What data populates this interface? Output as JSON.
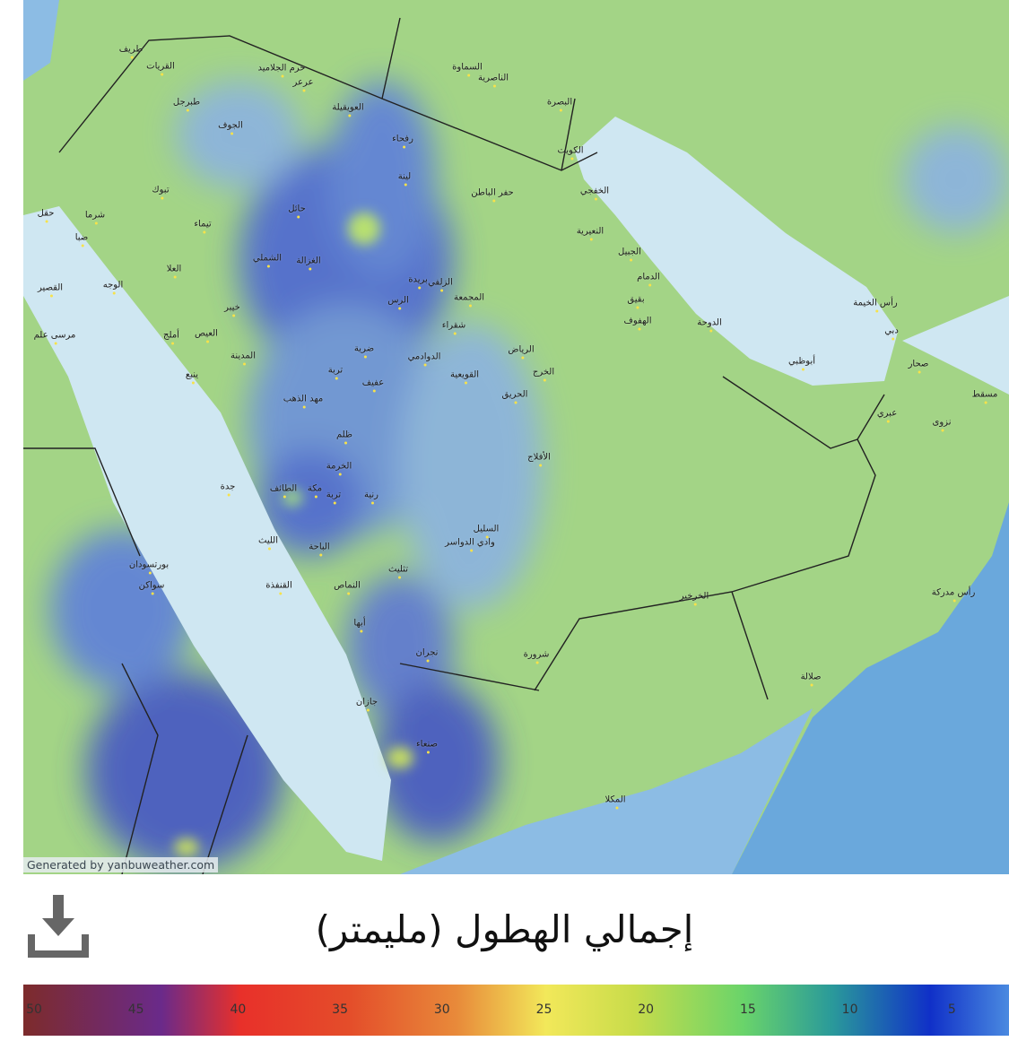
{
  "map": {
    "credit": "Generated by yanbuweather.com",
    "colors": {
      "land": "#a3d486",
      "sea_shallow": "#cfe7f2",
      "sea_deep": "#6aa8dc",
      "rain_light": "#7aa6e0",
      "rain_heavy": "#3a4fd0",
      "border": "#222222"
    },
    "cities": [
      "الرياض",
      "الخرج",
      "الحريق",
      "الأفلاج",
      "بريدة",
      "الرس",
      "المجمعة",
      "الزلفي",
      "شقراء",
      "الدوادمي",
      "القويعية",
      "عفيف",
      "ضرية",
      "ظلم",
      "رنية",
      "تربة",
      "الخرمة",
      "الطائف",
      "مكة",
      "جدة",
      "الليث",
      "القنفذة",
      "النماص",
      "الباحة",
      "أبها",
      "نجران",
      "جازان",
      "شرورة",
      "السليل",
      "وادي الدواسر",
      "تثليث",
      "الخرخير",
      "صلالة",
      "المكلا",
      "صنعاء",
      "الدمام",
      "الهفوف",
      "بقيق",
      "الجبيل",
      "النعيرية",
      "الخفجي",
      "الكويت",
      "البصرة",
      "الناصرية",
      "السماوة",
      "حفر الباطن",
      "رفحاء",
      "عرعر",
      "طريف",
      "القريات",
      "طبرجل",
      "الجوف",
      "حرم الجلاميد",
      "العويقيلة",
      "لينة",
      "حائل",
      "الغزالة",
      "الشملي",
      "تيماء",
      "تبوك",
      "شرما",
      "ضبا",
      "العلا",
      "الوجه",
      "خيبر",
      "العيص",
      "أملج",
      "ينبع",
      "المدينة",
      "مهد الذهب",
      "تربة",
      "الدوحة",
      "أبوظبي",
      "دبي",
      "رأس الخيمة",
      "صحار",
      "مسقط",
      "عبري",
      "نزوى",
      "رأس مدركة",
      "بورتسودان",
      "سواكن",
      "مرسى علم",
      "القصير",
      "حقل"
    ]
  },
  "download_icon": "download-icon",
  "legend": {
    "title": "إجمالي الهطول (مليمتر)",
    "ticks": [
      "50",
      "45",
      "40",
      "35",
      "30",
      "25",
      "20",
      "15",
      "10",
      "5"
    ]
  }
}
